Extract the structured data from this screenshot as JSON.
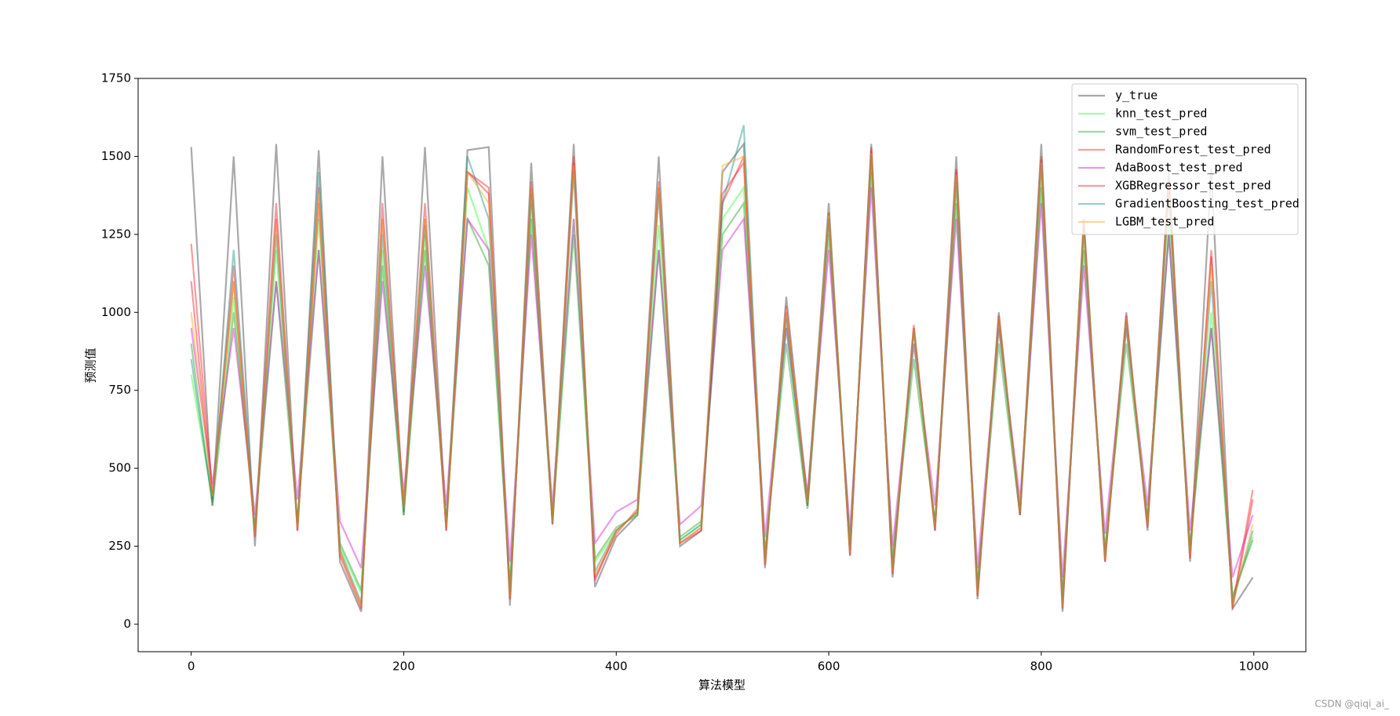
{
  "chart_data": {
    "type": "line",
    "xlabel": "算法模型",
    "ylabel": "预测值",
    "watermark": "CSDN @qiqi_ai_",
    "xlim": [
      -49.95,
      1048.95
    ],
    "ylim": [
      -88,
      1750
    ],
    "xticks": [
      0,
      200,
      400,
      600,
      800,
      1000
    ],
    "yticks": [
      0,
      250,
      500,
      750,
      1000,
      1250,
      1500,
      1750
    ],
    "legend": "upper right",
    "grid": false,
    "alpha": 0.45,
    "x": [
      0,
      20,
      40,
      60,
      80,
      100,
      120,
      140,
      160,
      180,
      200,
      220,
      240,
      260,
      280,
      300,
      320,
      340,
      360,
      380,
      400,
      420,
      440,
      460,
      480,
      500,
      520,
      540,
      560,
      580,
      600,
      620,
      640,
      660,
      680,
      700,
      720,
      740,
      760,
      780,
      800,
      820,
      840,
      860,
      880,
      900,
      920,
      940,
      960,
      980,
      999
    ],
    "series": [
      {
        "name": "y_true",
        "color": "#404040",
        "values": [
          1530,
          380,
          1500,
          250,
          1540,
          300,
          1520,
          200,
          40,
          1500,
          350,
          1530,
          300,
          1520,
          1530,
          60,
          1480,
          320,
          1540,
          120,
          280,
          350,
          1500,
          250,
          300,
          1450,
          1540,
          180,
          1050,
          400,
          1350,
          220,
          1540,
          150,
          950,
          300,
          1500,
          80,
          1000,
          350,
          1540,
          40,
          1300,
          200,
          1000,
          300,
          1450,
          200,
          1460,
          50,
          150
        ]
      },
      {
        "name": "knn_test_pred",
        "color": "#33ff33",
        "values": [
          800,
          400,
          1050,
          300,
          1200,
          320,
          1300,
          250,
          100,
          1200,
          360,
          1250,
          320,
          1400,
          1200,
          120,
          1350,
          340,
          1300,
          200,
          300,
          360,
          1280,
          270,
          320,
          1300,
          1400,
          220,
          950,
          380,
          1320,
          250,
          1500,
          200,
          900,
          320,
          1400,
          120,
          950,
          360,
          1450,
          80,
          1250,
          230,
          950,
          330,
          1300,
          240,
          1000,
          80,
          280
        ]
      },
      {
        "name": "svm_test_pred",
        "color": "#2ca02c",
        "values": [
          900,
          380,
          1000,
          310,
          1100,
          330,
          1200,
          260,
          110,
          1150,
          350,
          1200,
          330,
          1300,
          1150,
          130,
          1300,
          330,
          1250,
          210,
          310,
          350,
          1200,
          280,
          330,
          1250,
          1350,
          230,
          900,
          370,
          1250,
          260,
          1450,
          210,
          850,
          330,
          1350,
          130,
          900,
          350,
          1400,
          90,
          1200,
          240,
          900,
          340,
          1250,
          250,
          950,
          90,
          270
        ]
      },
      {
        "name": "RandomForest_test_pred",
        "color": "#ff2020",
        "values": [
          1220,
          420,
          1100,
          280,
          1300,
          310,
          1350,
          230,
          60,
          1300,
          380,
          1300,
          300,
          1450,
          1400,
          90,
          1400,
          320,
          1500,
          150,
          290,
          370,
          1400,
          260,
          310,
          1350,
          1500,
          200,
          1000,
          390,
          1300,
          230,
          1520,
          170,
          950,
          310,
          1450,
          100,
          980,
          360,
          1500,
          60,
          1280,
          210,
          980,
          320,
          1400,
          220,
          1200,
          60,
          430
        ]
      },
      {
        "name": "AdaBoost_test_pred",
        "color": "#d020d0",
        "values": [
          950,
          450,
          950,
          350,
          1100,
          400,
          1200,
          330,
          180,
          1100,
          420,
          1150,
          380,
          1300,
          1200,
          200,
          1250,
          380,
          1300,
          260,
          360,
          400,
          1200,
          320,
          380,
          1200,
          1300,
          280,
          950,
          420,
          1200,
          300,
          1400,
          250,
          900,
          380,
          1300,
          180,
          950,
          400,
          1350,
          150,
          1150,
          290,
          950,
          380,
          1250,
          300,
          950,
          150,
          350
        ]
      },
      {
        "name": "XGBRegressor_test_pred",
        "color": "#e8202a",
        "values": [
          1100,
          400,
          1150,
          290,
          1350,
          300,
          1400,
          220,
          50,
          1350,
          370,
          1350,
          310,
          1450,
          1380,
          80,
          1420,
          330,
          1480,
          140,
          300,
          360,
          1420,
          260,
          300,
          1380,
          1480,
          190,
          1020,
          380,
          1320,
          220,
          1530,
          160,
          960,
          300,
          1460,
          90,
          990,
          350,
          1490,
          50,
          1290,
          200,
          990,
          310,
          1420,
          210,
          1180,
          50,
          400
        ]
      },
      {
        "name": "GradientBoosting_test_pred",
        "color": "#20908a",
        "values": [
          850,
          390,
          1200,
          300,
          1250,
          320,
          1450,
          240,
          70,
          1250,
          360,
          1280,
          320,
          1500,
          1300,
          100,
          1380,
          330,
          1450,
          170,
          300,
          360,
          1380,
          270,
          320,
          1350,
          1600,
          210,
          980,
          380,
          1300,
          240,
          1500,
          180,
          940,
          320,
          1420,
          110,
          970,
          360,
          1480,
          70,
          1270,
          220,
          970,
          330,
          1380,
          230,
          1100,
          70,
          300
        ]
      },
      {
        "name": "LGBM_test_pred",
        "color": "#f5a623",
        "values": [
          1000,
          410,
          1100,
          290,
          1280,
          310,
          1380,
          230,
          60,
          1300,
          370,
          1300,
          310,
          1450,
          1350,
          90,
          1400,
          330,
          1470,
          160,
          300,
          360,
          1400,
          260,
          310,
          1470,
          1500,
          200,
          1010,
          390,
          1310,
          230,
          1510,
          170,
          950,
          310,
          1440,
          100,
          980,
          360,
          1480,
          60,
          1280,
          210,
          980,
          320,
          1400,
          220,
          1150,
          60,
          320
        ]
      }
    ]
  }
}
